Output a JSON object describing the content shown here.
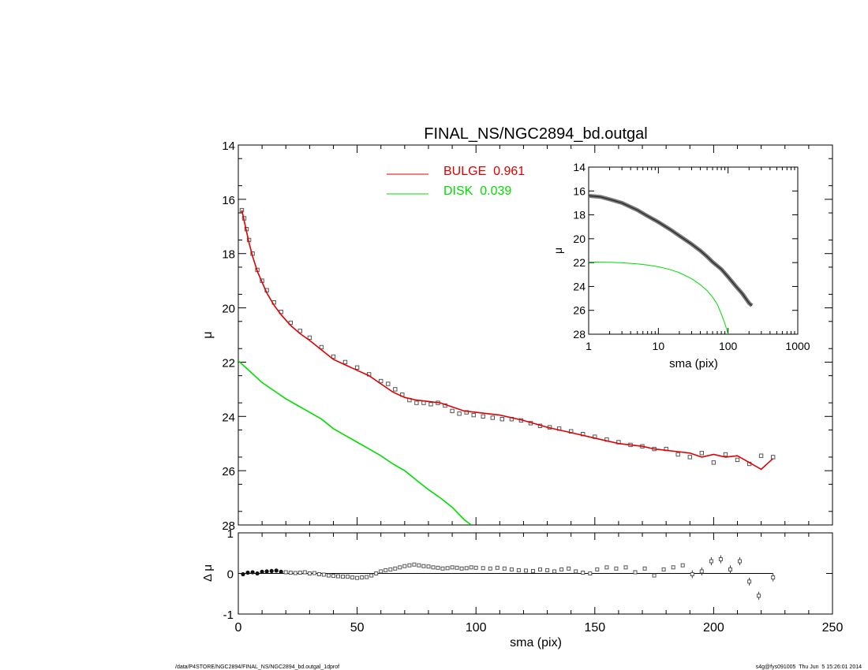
{
  "footer": {
    "left": "/data/P4STORE/NGC2894/FINAL_NS/NGC2894_bd.outgal_1dprof",
    "right": "s4g@fys091005  Thu Jun  5 15:26:01 2014"
  },
  "colors": {
    "bulge": "#e00000",
    "disk": "#00dd00",
    "data": "#555555",
    "axis": "#000000"
  },
  "chart_data": [
    {
      "id": "main",
      "type": "scatter",
      "title": "FINAL_NS/NGC2894_bd.outgal",
      "xlabel": "",
      "ylabel": "μ",
      "xlim": [
        0,
        250
      ],
      "ylim": [
        28,
        14
      ],
      "y_ticks": [
        14,
        16,
        18,
        20,
        22,
        24,
        26,
        28
      ],
      "legend": [
        {
          "label": "BULGE  0.961",
          "color": "#e00000"
        },
        {
          "label": "DISK  0.039",
          "color": "#00dd00"
        }
      ],
      "legend_position": "top-center",
      "series": [
        {
          "role": "data",
          "style": "squares",
          "x": [
            1.5,
            2.5,
            3.5,
            4.5,
            6,
            8,
            10,
            12,
            15,
            18,
            22,
            26,
            30,
            35,
            40,
            45,
            50,
            55,
            60,
            63,
            66,
            69,
            72,
            75,
            78,
            81,
            84,
            87,
            90,
            93,
            96,
            99,
            103,
            107,
            111,
            115,
            119,
            123,
            127,
            131,
            135,
            140,
            145,
            150,
            155,
            160,
            165,
            170,
            175,
            180,
            185,
            190,
            195,
            200,
            205,
            210,
            215,
            220,
            225
          ],
          "y": [
            16.4,
            16.7,
            17.1,
            17.5,
            18.0,
            18.6,
            19.0,
            19.35,
            19.8,
            20.15,
            20.55,
            20.85,
            21.1,
            21.45,
            21.8,
            22.0,
            22.2,
            22.45,
            22.7,
            22.8,
            23.0,
            23.2,
            23.4,
            23.5,
            23.5,
            23.55,
            23.5,
            23.6,
            23.8,
            23.9,
            23.85,
            23.95,
            24.0,
            24.05,
            24.1,
            24.1,
            24.15,
            24.25,
            24.35,
            24.4,
            24.45,
            24.55,
            24.65,
            24.75,
            24.85,
            24.95,
            25.05,
            25.1,
            25.2,
            25.2,
            25.4,
            25.5,
            25.35,
            25.7,
            25.4,
            25.6,
            25.75,
            25.45,
            25.5
          ]
        },
        {
          "name": "BULGE",
          "role": "bulge",
          "style": "line",
          "x": [
            1.5,
            2.5,
            3.5,
            4.5,
            6,
            8,
            10,
            12,
            15,
            18,
            22,
            26,
            30,
            35,
            40,
            45,
            50,
            55,
            60,
            65,
            70,
            75,
            80,
            85,
            90,
            95,
            100,
            110,
            120,
            130,
            140,
            150,
            160,
            165,
            170,
            175,
            180,
            185,
            190,
            195,
            200,
            205,
            210,
            215,
            220,
            225
          ],
          "y": [
            16.4,
            16.8,
            17.2,
            17.6,
            18.1,
            18.65,
            19.05,
            19.45,
            19.9,
            20.25,
            20.65,
            20.95,
            21.2,
            21.55,
            21.9,
            22.1,
            22.3,
            22.5,
            22.8,
            23.1,
            23.3,
            23.4,
            23.45,
            23.5,
            23.65,
            23.8,
            23.85,
            23.95,
            24.15,
            24.4,
            24.6,
            24.8,
            25.0,
            25.05,
            25.1,
            25.2,
            25.25,
            25.3,
            25.35,
            25.5,
            25.4,
            25.5,
            25.45,
            25.7,
            25.95,
            25.55
          ]
        },
        {
          "name": "DISK",
          "role": "disk",
          "style": "line",
          "x": [
            0,
            5,
            10,
            15,
            20,
            25,
            30,
            35,
            40,
            45,
            50,
            55,
            60,
            65,
            70,
            75,
            80,
            85,
            90,
            95,
            98
          ],
          "y": [
            21.95,
            22.35,
            22.75,
            23.05,
            23.35,
            23.6,
            23.85,
            24.1,
            24.45,
            24.7,
            24.95,
            25.2,
            25.45,
            25.75,
            26.0,
            26.35,
            26.7,
            27.0,
            27.35,
            27.8,
            28.0
          ]
        }
      ]
    },
    {
      "id": "inset",
      "type": "line",
      "xlabel": "sma (pix)",
      "ylabel": "μ",
      "xscale": "log",
      "xlim": [
        1,
        1000
      ],
      "ylim": [
        28,
        14
      ],
      "x_ticks": [
        1,
        10,
        100,
        1000
      ],
      "y_ticks": [
        14,
        16,
        18,
        20,
        22,
        24,
        26,
        28
      ],
      "series": [
        {
          "role": "data",
          "style": "thick",
          "x": [
            1,
            1.5,
            2,
            3,
            5,
            7,
            10,
            15,
            20,
            30,
            40,
            50,
            60,
            80,
            100,
            130,
            160,
            200,
            220
          ],
          "y": [
            16.4,
            16.5,
            16.7,
            17.0,
            17.6,
            18.1,
            18.6,
            19.25,
            19.75,
            20.45,
            21.0,
            21.5,
            21.95,
            22.55,
            23.2,
            24.0,
            24.6,
            25.4,
            25.6
          ]
        },
        {
          "role": "disk",
          "style": "line",
          "x": [
            1,
            2,
            3,
            5,
            7,
            10,
            15,
            20,
            30,
            40,
            50,
            60,
            70,
            80,
            90,
            100
          ],
          "y": [
            21.95,
            21.98,
            22.02,
            22.1,
            22.2,
            22.35,
            22.6,
            22.85,
            23.35,
            23.85,
            24.35,
            24.9,
            25.5,
            26.3,
            27.1,
            28.0
          ]
        }
      ]
    },
    {
      "id": "residual",
      "type": "scatter",
      "xlabel": "sma (pix)",
      "ylabel": "Δ μ",
      "xlim": [
        0,
        250
      ],
      "ylim": [
        -1,
        1
      ],
      "x_ticks": [
        0,
        50,
        100,
        150,
        200,
        250
      ],
      "y_ticks": [
        -1,
        0,
        1
      ],
      "series": [
        {
          "role": "residual",
          "style": "squares",
          "x": [
            2,
            4,
            6,
            8,
            10,
            12,
            14,
            16,
            18,
            20,
            22,
            24,
            26,
            28,
            30,
            32,
            34,
            36,
            38,
            40,
            42,
            44,
            46,
            48,
            50,
            52,
            54,
            56,
            58,
            60,
            62,
            64,
            66,
            68,
            70,
            72,
            74,
            76,
            78,
            80,
            82,
            84,
            86,
            88,
            90,
            92,
            94,
            96,
            98,
            100,
            103,
            106,
            109,
            112,
            115,
            118,
            121,
            124,
            127,
            130,
            133,
            136,
            139,
            142,
            145,
            148,
            151,
            155,
            159,
            163,
            167,
            171,
            175,
            179,
            183,
            187,
            191,
            195,
            199,
            203,
            207,
            211,
            215,
            219,
            225
          ],
          "y": [
            -0.02,
            0.02,
            0.03,
            0.0,
            0.04,
            0.05,
            0.06,
            0.07,
            0.04,
            0.03,
            0.02,
            0.01,
            0.02,
            0.03,
            0.0,
            0.01,
            -0.02,
            -0.03,
            -0.05,
            -0.06,
            -0.07,
            -0.08,
            -0.08,
            -0.1,
            -0.11,
            -0.1,
            -0.09,
            -0.05,
            0.0,
            0.05,
            0.08,
            0.1,
            0.12,
            0.15,
            0.18,
            0.2,
            0.22,
            0.2,
            0.18,
            0.17,
            0.15,
            0.14,
            0.12,
            0.13,
            0.15,
            0.14,
            0.12,
            0.13,
            0.15,
            0.14,
            0.13,
            0.12,
            0.14,
            0.12,
            0.1,
            0.08,
            0.07,
            0.06,
            0.1,
            0.08,
            0.05,
            0.1,
            0.12,
            0.05,
            0.02,
            0.0,
            0.1,
            0.15,
            0.12,
            0.15,
            0.03,
            0.12,
            -0.05,
            0.1,
            0.15,
            0.2,
            -0.02,
            0.05,
            0.3,
            0.35,
            0.1,
            0.3,
            -0.2,
            -0.55,
            -0.1
          ]
        }
      ]
    }
  ]
}
